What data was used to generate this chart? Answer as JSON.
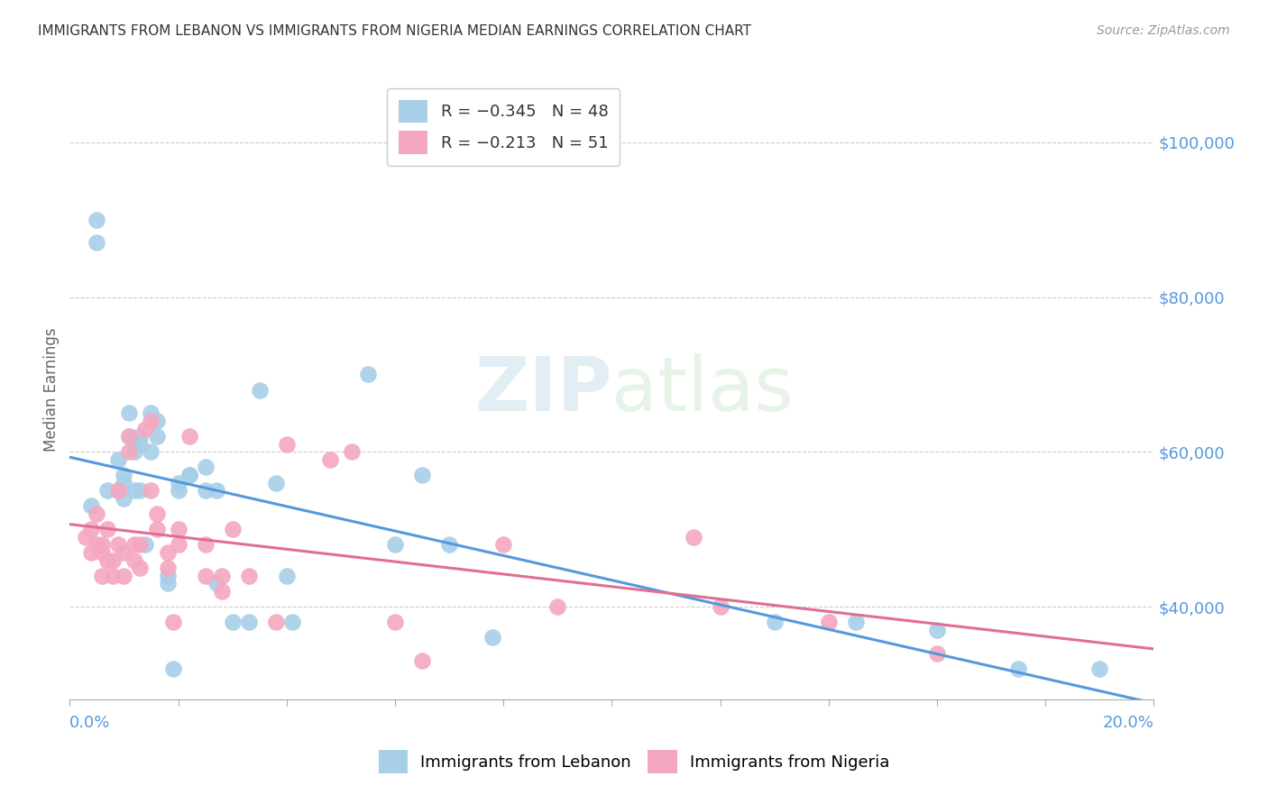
{
  "title": "IMMIGRANTS FROM LEBANON VS IMMIGRANTS FROM NIGERIA MEDIAN EARNINGS CORRELATION CHART",
  "source": "Source: ZipAtlas.com",
  "ylabel": "Median Earnings",
  "xlim": [
    0.0,
    0.2
  ],
  "ylim": [
    28000,
    108000
  ],
  "color_lebanon": "#a8cfe8",
  "color_nigeria": "#f4a8c0",
  "color_line_lebanon": "#5599dd",
  "color_line_nigeria": "#e07090",
  "color_axis_labels": "#5599dd",
  "color_title": "#333333",
  "background_color": "#ffffff",
  "watermark_text": "ZIPatlas",
  "lebanon_x": [
    0.004,
    0.005,
    0.005,
    0.007,
    0.009,
    0.009,
    0.01,
    0.01,
    0.01,
    0.011,
    0.011,
    0.012,
    0.012,
    0.013,
    0.013,
    0.013,
    0.014,
    0.015,
    0.015,
    0.016,
    0.016,
    0.018,
    0.018,
    0.019,
    0.02,
    0.02,
    0.022,
    0.022,
    0.025,
    0.025,
    0.027,
    0.027,
    0.03,
    0.033,
    0.035,
    0.038,
    0.04,
    0.041,
    0.055,
    0.06,
    0.065,
    0.07,
    0.078,
    0.13,
    0.145,
    0.16,
    0.175,
    0.19
  ],
  "lebanon_y": [
    53000,
    90000,
    87000,
    55000,
    59000,
    55000,
    57000,
    56000,
    54000,
    65000,
    62000,
    60000,
    55000,
    62000,
    61000,
    55000,
    48000,
    65000,
    60000,
    64000,
    62000,
    44000,
    43000,
    32000,
    55000,
    56000,
    57000,
    57000,
    58000,
    55000,
    55000,
    43000,
    38000,
    38000,
    68000,
    56000,
    44000,
    38000,
    70000,
    48000,
    57000,
    48000,
    36000,
    38000,
    38000,
    37000,
    32000,
    32000
  ],
  "nigeria_x": [
    0.003,
    0.004,
    0.004,
    0.005,
    0.005,
    0.006,
    0.006,
    0.006,
    0.007,
    0.007,
    0.008,
    0.008,
    0.009,
    0.009,
    0.01,
    0.01,
    0.011,
    0.011,
    0.012,
    0.012,
    0.013,
    0.013,
    0.014,
    0.015,
    0.015,
    0.016,
    0.016,
    0.018,
    0.018,
    0.019,
    0.02,
    0.02,
    0.022,
    0.025,
    0.025,
    0.028,
    0.028,
    0.03,
    0.033,
    0.038,
    0.04,
    0.048,
    0.052,
    0.06,
    0.065,
    0.08,
    0.09,
    0.115,
    0.12,
    0.14,
    0.16
  ],
  "nigeria_y": [
    49000,
    50000,
    47000,
    52000,
    48000,
    48000,
    47000,
    44000,
    50000,
    46000,
    46000,
    44000,
    55000,
    48000,
    47000,
    44000,
    62000,
    60000,
    48000,
    46000,
    48000,
    45000,
    63000,
    64000,
    55000,
    52000,
    50000,
    45000,
    47000,
    38000,
    50000,
    48000,
    62000,
    48000,
    44000,
    44000,
    42000,
    50000,
    44000,
    38000,
    61000,
    59000,
    60000,
    38000,
    33000,
    48000,
    40000,
    49000,
    40000,
    38000,
    34000
  ],
  "ytick_vals": [
    40000,
    60000,
    80000,
    100000
  ],
  "ytick_labels": [
    "$40,000",
    "$60,000",
    "$80,000",
    "$100,000"
  ]
}
